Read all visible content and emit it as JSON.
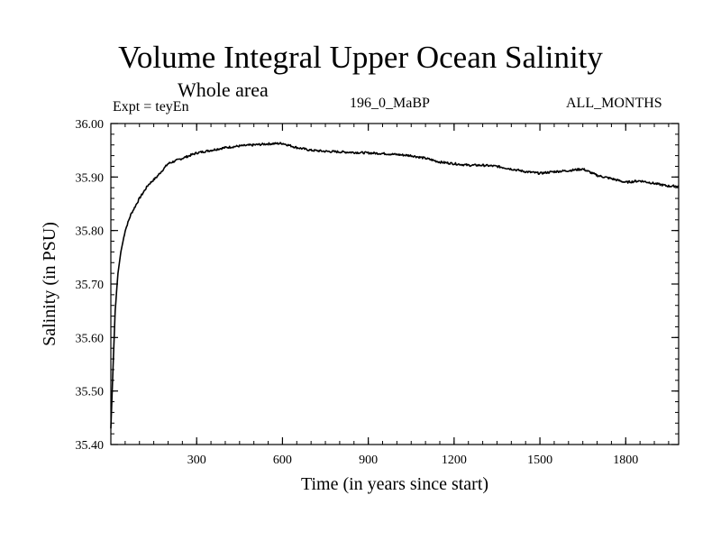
{
  "chart_data": {
    "type": "line",
    "title": "Volume Integral Upper Ocean Salinity",
    "subtitle": "Whole area",
    "annotations": {
      "experiment": "Expt = teyEn",
      "run": "196_0_MaBP",
      "period": "ALL_MONTHS"
    },
    "xlabel": "Time (in years since start)",
    "ylabel": "Salinity (in PSU)",
    "xlim": [
      0,
      1985
    ],
    "ylim": [
      35.4,
      36.0
    ],
    "xticks": [
      300,
      600,
      900,
      1200,
      1500,
      1800
    ],
    "xtick_labels": [
      "300",
      "600",
      "900",
      "1200",
      "1500",
      "1800"
    ],
    "yticks": [
      35.4,
      35.5,
      35.6,
      35.7,
      35.8,
      35.9,
      36.0
    ],
    "ytick_labels": [
      "35.40",
      "35.50",
      "35.60",
      "35.70",
      "35.80",
      "35.90",
      "36.00"
    ],
    "grid": false,
    "series": [
      {
        "name": "Salinity",
        "x": [
          0,
          8,
          15,
          25,
          35,
          50,
          70,
          100,
          130,
          160,
          200,
          250,
          300,
          350,
          400,
          450,
          500,
          550,
          600,
          650,
          700,
          750,
          800,
          850,
          900,
          950,
          1000,
          1050,
          1100,
          1150,
          1200,
          1250,
          1300,
          1350,
          1400,
          1450,
          1500,
          1550,
          1600,
          1650,
          1700,
          1750,
          1800,
          1850,
          1900,
          1950,
          1985
        ],
        "y": [
          35.43,
          35.55,
          35.65,
          35.72,
          35.76,
          35.8,
          35.83,
          35.86,
          35.885,
          35.9,
          35.925,
          35.935,
          35.945,
          35.95,
          35.955,
          35.958,
          35.96,
          35.962,
          35.963,
          35.955,
          35.95,
          35.948,
          35.947,
          35.946,
          35.945,
          35.944,
          35.942,
          35.94,
          35.935,
          35.928,
          35.925,
          35.922,
          35.922,
          35.92,
          35.915,
          35.91,
          35.907,
          35.91,
          35.912,
          35.915,
          35.903,
          35.897,
          35.89,
          35.893,
          35.888,
          35.883,
          35.883
        ]
      }
    ]
  }
}
